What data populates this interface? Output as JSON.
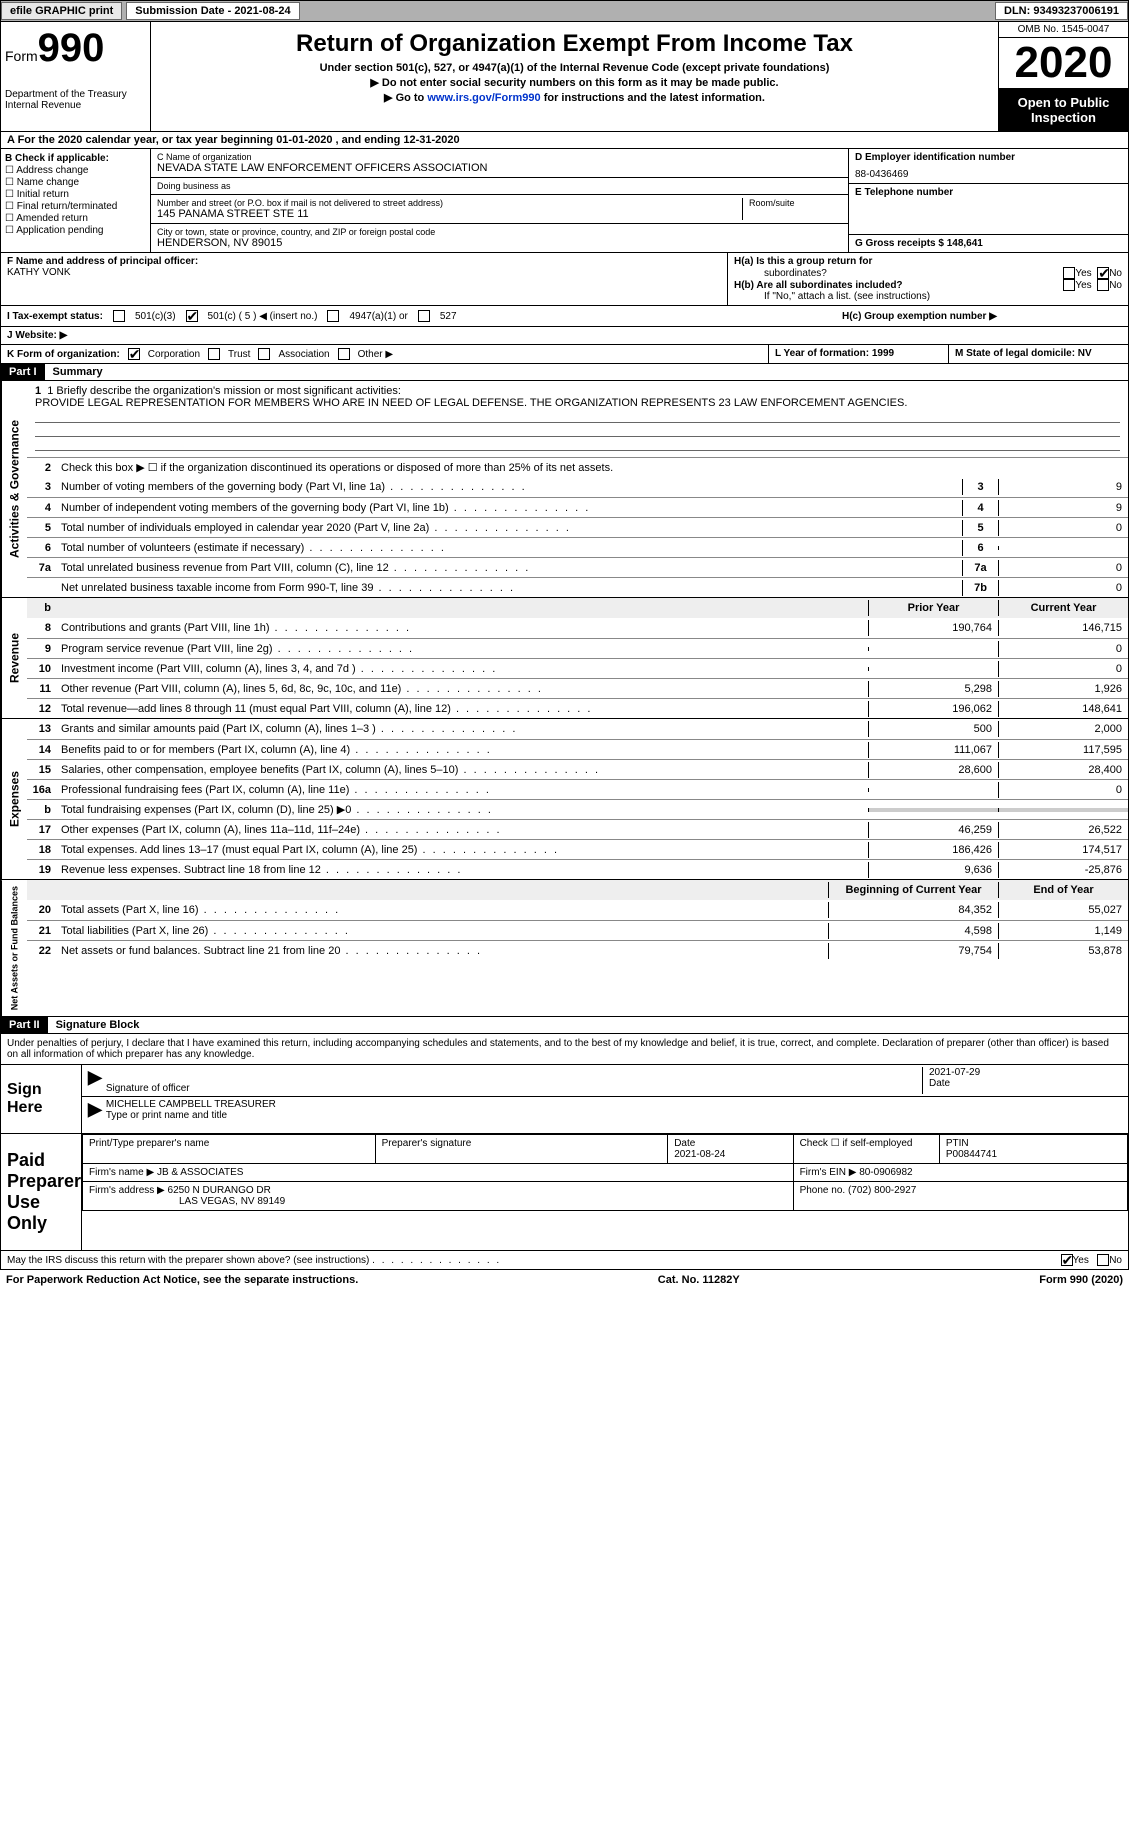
{
  "topbar": {
    "efile": "efile GRAPHIC print",
    "submission_label": "Submission Date - 2021-08-24",
    "dln_label": "DLN: 93493237006191"
  },
  "header": {
    "form_word": "Form",
    "form_num": "990",
    "dept": "Department of the Treasury",
    "irs": "Internal Revenue",
    "title": "Return of Organization Exempt From Income Tax",
    "sub1": "Under section 501(c), 527, or 4947(a)(1) of the Internal Revenue Code (except private foundations)",
    "sub2": "▶ Do not enter social security numbers on this form as it may be made public.",
    "sub3_pre": "▶ Go to ",
    "sub3_link": "www.irs.gov/Form990",
    "sub3_post": " for instructions and the latest information.",
    "omb": "OMB No. 1545-0047",
    "year": "2020",
    "open1": "Open to Public",
    "open2": "Inspection"
  },
  "line_a": "A For the 2020 calendar year, or tax year beginning 01-01-2020    , and ending 12-31-2020",
  "col_b": {
    "hdr": "B Check if applicable:",
    "items": [
      "Address change",
      "Name change",
      "Initial return",
      "Final return/terminated",
      "Amended return",
      "Application pending"
    ]
  },
  "col_c": {
    "name_lbl": "C Name of organization",
    "name": "NEVADA STATE LAW ENFORCEMENT OFFICERS ASSOCIATION",
    "dba_lbl": "Doing business as",
    "dba": "",
    "addr_lbl": "Number and street (or P.O. box if mail is not delivered to street address)",
    "room_lbl": "Room/suite",
    "addr": "145 PANAMA STREET STE 11",
    "city_lbl": "City or town, state or province, country, and ZIP or foreign postal code",
    "city": "HENDERSON, NV   89015"
  },
  "col_d": {
    "ein_lbl": "D Employer identification number",
    "ein": "88-0436469",
    "tel_lbl": "E Telephone number",
    "tel": "",
    "gross_lbl": "G Gross receipts $ 148,641"
  },
  "row_f": {
    "lbl": "F  Name and address of principal officer:",
    "name": "KATHY VONK"
  },
  "row_h": {
    "ha": "H(a)  Is this a group return for",
    "ha2": "subordinates?",
    "hb": "H(b)  Are all subordinates included?",
    "hb2": "If \"No,\" attach a list. (see instructions)",
    "hc": "H(c)  Group exemption number ▶",
    "yes": "Yes",
    "no": "No"
  },
  "row_i": {
    "lbl": "I    Tax-exempt status:",
    "o1": "501(c)(3)",
    "o2": "501(c) ( 5 ) ◀ (insert no.)",
    "o3": "4947(a)(1) or",
    "o4": "527"
  },
  "row_j": {
    "lbl": "J   Website: ▶"
  },
  "row_k": {
    "lbl": "K Form of organization:",
    "o1": "Corporation",
    "o2": "Trust",
    "o3": "Association",
    "o4": "Other ▶",
    "l": "L Year of formation: 1999",
    "m": "M State of legal domicile: NV"
  },
  "part1": {
    "hdr": "Part I",
    "title": "Summary",
    "l1a": "1  Briefly describe the organization's mission or most significant activities:",
    "l1b": "PROVIDE LEGAL REPRESENTATION FOR MEMBERS WHO ARE IN NEED OF LEGAL DEFENSE. THE ORGANIZATION REPRESENTS 23 LAW ENFORCEMENT AGENCIES.",
    "l2": "Check this box ▶ ☐  if the organization discontinued its operations or disposed of more than 25% of its net assets.",
    "vtab1": "Activities & Governance",
    "vtab2": "Revenue",
    "vtab3": "Expenses",
    "vtab4": "Net Assets or Fund Balances",
    "rows_gov": [
      {
        "n": "3",
        "t": "Number of voting members of the governing body (Part VI, line 1a)",
        "b": "3",
        "v": "9"
      },
      {
        "n": "4",
        "t": "Number of independent voting members of the governing body (Part VI, line 1b)",
        "b": "4",
        "v": "9"
      },
      {
        "n": "5",
        "t": "Total number of individuals employed in calendar year 2020 (Part V, line 2a)",
        "b": "5",
        "v": "0"
      },
      {
        "n": "6",
        "t": "Total number of volunteers (estimate if necessary)",
        "b": "6",
        "v": ""
      },
      {
        "n": "7a",
        "t": "Total unrelated business revenue from Part VIII, column (C), line 12",
        "b": "7a",
        "v": "0"
      },
      {
        "n": "",
        "t": "Net unrelated business taxable income from Form 990-T, line 39",
        "b": "7b",
        "v": "0"
      }
    ],
    "col_py": "Prior Year",
    "col_cy": "Current Year",
    "rows_rev": [
      {
        "n": "8",
        "t": "Contributions and grants (Part VIII, line 1h)",
        "py": "190,764",
        "cy": "146,715"
      },
      {
        "n": "9",
        "t": "Program service revenue (Part VIII, line 2g)",
        "py": "",
        "cy": "0"
      },
      {
        "n": "10",
        "t": "Investment income (Part VIII, column (A), lines 3, 4, and 7d )",
        "py": "",
        "cy": "0"
      },
      {
        "n": "11",
        "t": "Other revenue (Part VIII, column (A), lines 5, 6d, 8c, 9c, 10c, and 11e)",
        "py": "5,298",
        "cy": "1,926"
      },
      {
        "n": "12",
        "t": "Total revenue—add lines 8 through 11 (must equal Part VIII, column (A), line 12)",
        "py": "196,062",
        "cy": "148,641"
      }
    ],
    "rows_exp": [
      {
        "n": "13",
        "t": "Grants and similar amounts paid (Part IX, column (A), lines 1–3 )",
        "py": "500",
        "cy": "2,000"
      },
      {
        "n": "14",
        "t": "Benefits paid to or for members (Part IX, column (A), line 4)",
        "py": "111,067",
        "cy": "117,595"
      },
      {
        "n": "15",
        "t": "Salaries, other compensation, employee benefits (Part IX, column (A), lines 5–10)",
        "py": "28,600",
        "cy": "28,400"
      },
      {
        "n": "16a",
        "t": "Professional fundraising fees (Part IX, column (A), line 11e)",
        "py": "",
        "cy": "0"
      },
      {
        "n": "b",
        "t": "Total fundraising expenses (Part IX, column (D), line 25) ▶0",
        "py": "SHADE",
        "cy": "SHADE"
      },
      {
        "n": "17",
        "t": "Other expenses (Part IX, column (A), lines 11a–11d, 11f–24e)",
        "py": "46,259",
        "cy": "26,522"
      },
      {
        "n": "18",
        "t": "Total expenses. Add lines 13–17 (must equal Part IX, column (A), line 25)",
        "py": "186,426",
        "cy": "174,517"
      },
      {
        "n": "19",
        "t": "Revenue less expenses. Subtract line 18 from line 12",
        "py": "9,636",
        "cy": "-25,876"
      }
    ],
    "col_bcy": "Beginning of Current Year",
    "col_eoy": "End of Year",
    "rows_net": [
      {
        "n": "20",
        "t": "Total assets (Part X, line 16)",
        "py": "84,352",
        "cy": "55,027"
      },
      {
        "n": "21",
        "t": "Total liabilities (Part X, line 26)",
        "py": "4,598",
        "cy": "1,149"
      },
      {
        "n": "22",
        "t": "Net assets or fund balances. Subtract line 21 from line 20",
        "py": "79,754",
        "cy": "53,878"
      }
    ]
  },
  "part2": {
    "hdr": "Part II",
    "title": "Signature Block",
    "decl": "Under penalties of perjury, I declare that I have examined this return, including accompanying schedules and statements, and to the best of my knowledge and belief, it is true, correct, and complete. Declaration of preparer (other than officer) is based on all information of which preparer has any knowledge.",
    "sign_here": "Sign Here",
    "sig_officer": "Signature of officer",
    "sig_date": "2021-07-29",
    "date_lbl": "Date",
    "name_title": "MICHELLE CAMPBELL TREASURER",
    "type_lbl": "Type or print name and title",
    "paid": "Paid Preparer Use Only",
    "p_name_lbl": "Print/Type preparer's name",
    "p_sig_lbl": "Preparer's signature",
    "p_date_lbl": "Date",
    "p_date": "2021-08-24",
    "p_self": "Check ☐ if self-employed",
    "ptin_lbl": "PTIN",
    "ptin": "P00844741",
    "firm_name_lbl": "Firm's name    ▶",
    "firm_name": "JB & ASSOCIATES",
    "firm_ein_lbl": "Firm's EIN ▶",
    "firm_ein": "80-0906982",
    "firm_addr_lbl": "Firm's address ▶",
    "firm_addr1": "6250 N DURANGO DR",
    "firm_addr2": "LAS VEGAS, NV  89149",
    "phone_lbl": "Phone no.",
    "phone": "(702) 800-2927",
    "discuss": "May the IRS discuss this return with the preparer shown above? (see instructions)",
    "yes": "Yes",
    "no": "No"
  },
  "footer": {
    "l": "For Paperwork Reduction Act Notice, see the separate instructions.",
    "c": "Cat. No. 11282Y",
    "r": "Form 990 (2020)"
  }
}
